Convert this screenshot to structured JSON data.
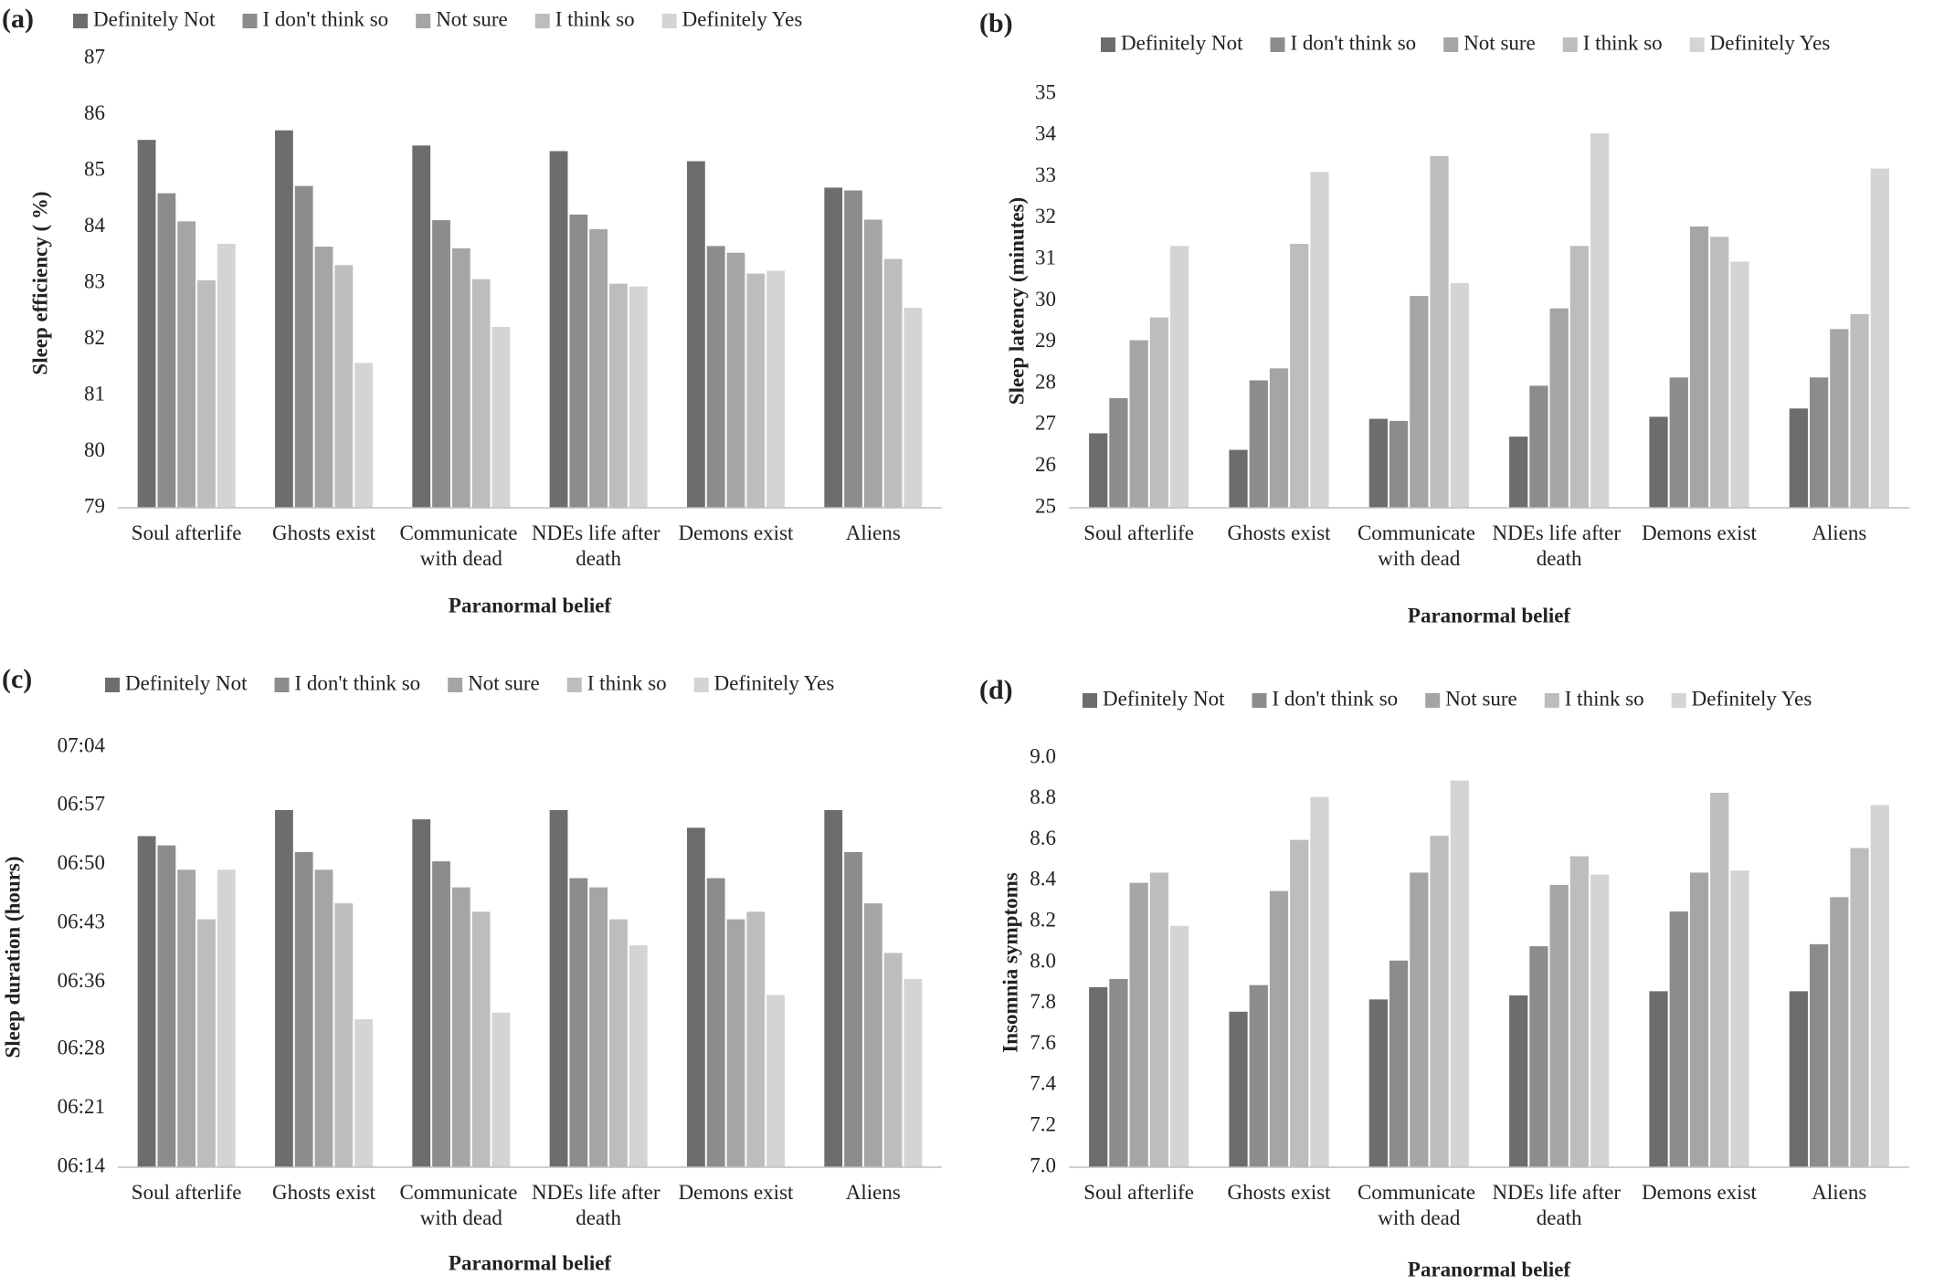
{
  "chart_data": [
    {
      "type": "bar",
      "label": "(a)",
      "x_label": "Paranormal belief",
      "y_label": "Sleep efficiency ( %)",
      "categories": [
        "Soul afterlife",
        "Ghosts exist",
        "Communicate with dead",
        "NDEs life after death",
        "Demons exist",
        "Aliens"
      ],
      "series": [
        {
          "name": "Definitely Not",
          "color": "#6d6d6d",
          "values": [
            85.55,
            85.72,
            85.45,
            85.35,
            85.17,
            84.7
          ]
        },
        {
          "name": "I don't think so",
          "color": "#8c8c8c",
          "values": [
            84.6,
            84.73,
            84.12,
            84.22,
            83.66,
            84.65
          ]
        },
        {
          "name": "Not sure",
          "color": "#a5a5a5",
          "values": [
            84.1,
            83.65,
            83.62,
            83.96,
            83.54,
            84.13
          ]
        },
        {
          "name": "I think so",
          "color": "#bdbdbd",
          "values": [
            83.05,
            83.32,
            83.07,
            82.99,
            83.17,
            83.43
          ]
        },
        {
          "name": "Definitely Yes",
          "color": "#d4d4d4",
          "values": [
            83.7,
            81.58,
            82.22,
            82.94,
            83.22,
            82.56
          ]
        }
      ],
      "ylim": [
        79,
        87
      ],
      "yticks": [
        79,
        80,
        81,
        82,
        83,
        84,
        85,
        86,
        87
      ],
      "grid": false
    },
    {
      "type": "bar",
      "label": "(b)",
      "x_label": "Paranormal belief",
      "y_label": "Sleep latency (minutes)",
      "categories": [
        "Soul afterlife",
        "Ghosts exist",
        "Communicate with dead",
        "NDEs life after death",
        "Demons exist",
        "Aliens"
      ],
      "series": [
        {
          "name": "Definitely Not",
          "color": "#6d6d6d",
          "values": [
            26.8,
            26.4,
            27.15,
            26.72,
            27.2,
            27.4
          ]
        },
        {
          "name": "I don't think so",
          "color": "#8c8c8c",
          "values": [
            27.65,
            28.08,
            27.1,
            27.95,
            28.15,
            28.15
          ]
        },
        {
          "name": "Not sure",
          "color": "#a5a5a5",
          "values": [
            29.05,
            28.37,
            30.12,
            29.82,
            31.8,
            29.32
          ]
        },
        {
          "name": "I think so",
          "color": "#bdbdbd",
          "values": [
            29.6,
            31.38,
            33.5,
            31.33,
            31.55,
            29.68
          ]
        },
        {
          "name": "Definitely Yes",
          "color": "#d4d4d4",
          "values": [
            31.33,
            33.12,
            30.43,
            34.05,
            30.95,
            33.2
          ]
        }
      ],
      "ylim": [
        25,
        35
      ],
      "yticks": [
        25,
        26,
        27,
        28,
        29,
        30,
        31,
        32,
        33,
        34,
        35
      ],
      "grid": false
    },
    {
      "type": "bar",
      "label": "(c)",
      "x_label": "Paranormal belief",
      "y_label": "Sleep duration (hours)",
      "categories": [
        "Soul afterlife",
        "Ghosts exist",
        "Communicate with dead",
        "NDEs life after death",
        "Demons exist",
        "Aliens"
      ],
      "series": [
        {
          "name": "Definitely Not",
          "color": "#6d6d6d",
          "values": [
            413.4,
            416.5,
            415.4,
            416.5,
            414.4,
            416.5
          ]
        },
        {
          "name": "I don't think so",
          "color": "#8c8c8c",
          "values": [
            412.3,
            411.5,
            410.4,
            408.4,
            408.4,
            411.5
          ]
        },
        {
          "name": "Not sure",
          "color": "#a5a5a5",
          "values": [
            409.4,
            409.4,
            407.3,
            407.3,
            403.5,
            405.4
          ]
        },
        {
          "name": "I think so",
          "color": "#bdbdbd",
          "values": [
            403.5,
            405.4,
            404.4,
            403.5,
            404.4,
            399.5
          ]
        },
        {
          "name": "Definitely Yes",
          "color": "#d4d4d4",
          "values": [
            409.4,
            391.6,
            392.4,
            400.4,
            394.5,
            396.4
          ]
        }
      ],
      "ylim": [
        374,
        424
      ],
      "yticks": [
        {
          "value": 374,
          "label": "06:14"
        },
        {
          "value": 381,
          "label": "06:21"
        },
        {
          "value": 388,
          "label": "06:28"
        },
        {
          "value": 396,
          "label": "06:36"
        },
        {
          "value": 403,
          "label": "06:43"
        },
        {
          "value": 410,
          "label": "06:50"
        },
        {
          "value": 417,
          "label": "06:57"
        },
        {
          "value": 424,
          "label": "07:04"
        }
      ],
      "grid": false
    },
    {
      "type": "bar",
      "label": "(d)",
      "x_label": "Paranormal belief",
      "y_label": "Insomnia symptoms",
      "categories": [
        "Soul afterlife",
        "Ghosts exist",
        "Communicate with dead",
        "NDEs life after death",
        "Demons exist",
        "Aliens"
      ],
      "series": [
        {
          "name": "Definitely Not",
          "color": "#6d6d6d",
          "values": [
            7.88,
            7.76,
            7.82,
            7.84,
            7.86,
            7.86
          ]
        },
        {
          "name": "I don't think so",
          "color": "#8c8c8c",
          "values": [
            7.92,
            7.89,
            8.01,
            8.08,
            8.25,
            8.09
          ]
        },
        {
          "name": "Not sure",
          "color": "#a5a5a5",
          "values": [
            8.39,
            8.35,
            8.44,
            8.38,
            8.44,
            8.32
          ]
        },
        {
          "name": "I think so",
          "color": "#bdbdbd",
          "values": [
            8.44,
            8.6,
            8.62,
            8.52,
            8.83,
            8.56
          ]
        },
        {
          "name": "Definitely Yes",
          "color": "#d4d4d4",
          "values": [
            8.18,
            8.81,
            8.89,
            8.43,
            8.45,
            8.77
          ]
        }
      ],
      "ylim": [
        7,
        9
      ],
      "yticks": [
        {
          "value": 7,
          "label": "7.0"
        },
        7.2,
        7.4,
        7.6,
        7.8,
        {
          "value": 8,
          "label": "8.0"
        },
        8.2,
        8.4,
        8.6,
        8.8,
        {
          "value": 9,
          "label": "9.0"
        }
      ],
      "grid": false
    }
  ]
}
